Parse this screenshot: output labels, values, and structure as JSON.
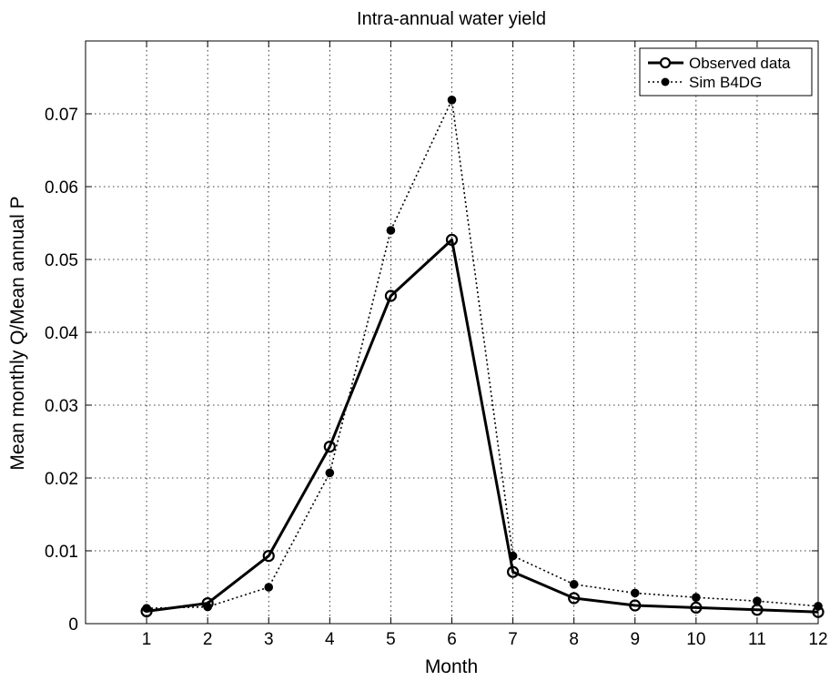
{
  "chart_data": {
    "type": "line",
    "title": "Intra-annual water yield",
    "xlabel": "Month",
    "ylabel": "Mean monthly Q/Mean annual P",
    "xlim": [
      0,
      12
    ],
    "ylim": [
      0,
      0.08
    ],
    "grid": true,
    "legend_position": "top-right",
    "x_ticks": [
      1,
      2,
      3,
      4,
      5,
      6,
      7,
      8,
      9,
      10,
      11,
      12
    ],
    "x_tick_labels": [
      "1",
      "2",
      "3",
      "4",
      "5",
      "6",
      "7",
      "8",
      "9",
      "10",
      "11",
      "12"
    ],
    "y_ticks": [
      0,
      0.01,
      0.02,
      0.03,
      0.04,
      0.05,
      0.06,
      0.07
    ],
    "y_tick_labels": [
      "0",
      "0.01",
      "0.02",
      "0.03",
      "0.04",
      "0.05",
      "0.06",
      "0.07"
    ],
    "x": [
      1,
      2,
      3,
      4,
      5,
      6,
      7,
      8,
      9,
      10,
      11,
      12
    ],
    "series": [
      {
        "name": "Observed data",
        "values": [
          0.0017,
          0.0028,
          0.0093,
          0.0243,
          0.045,
          0.0527,
          0.0071,
          0.0035,
          0.0025,
          0.0022,
          0.0019,
          0.0016
        ],
        "line_style": "solid",
        "marker": "open-circle",
        "color": "#000000"
      },
      {
        "name": "Sim B4DG",
        "values": [
          0.0021,
          0.0023,
          0.005,
          0.0207,
          0.054,
          0.0719,
          0.0093,
          0.0054,
          0.0042,
          0.0036,
          0.0031,
          0.0024
        ],
        "line_style": "dotted",
        "marker": "filled-circle",
        "color": "#000000"
      }
    ]
  }
}
